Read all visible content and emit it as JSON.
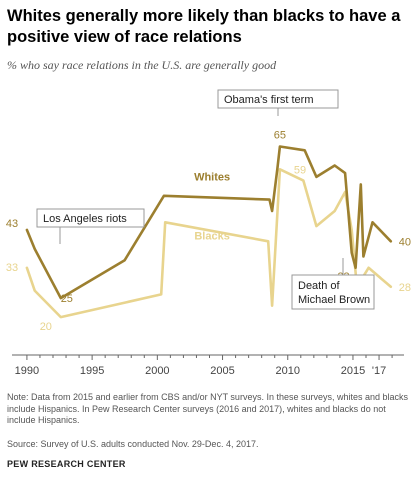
{
  "title": "Whites generally more likely than blacks to have a positive view of race relations",
  "subtitle": "% who say race relations in the U.S. are generally good",
  "note": "Note: Data from 2015 and earlier from CBS and/or NYT surveys. In these surveys, whites and blacks include Hispanics. In Pew Research Center surveys (2016 and 2017), whites and blacks do not include Hispanics.",
  "source": "Source: Survey of U.S. adults conducted Nov. 29-Dec. 4, 2017.",
  "brand": "PEW RESEARCH CENTER",
  "colors": {
    "whites": "#9c7f2f",
    "blacks": "#e8d48e",
    "axis": "#666666",
    "annotation_box": "#999999"
  },
  "chart_data": {
    "type": "line",
    "title": "Whites generally more likely than blacks to have a positive view of race relations",
    "subtitle": "% who say race relations in the U.S. are generally good",
    "xlabel": "",
    "ylabel": "",
    "x_ticks": [
      "1990",
      "1995",
      "2000",
      "2005",
      "2010",
      "2015",
      "'17"
    ],
    "x_tick_values": [
      1990,
      1995,
      2000,
      2005,
      2010,
      2015,
      2017
    ],
    "xlim": [
      1989.7,
      2018.3
    ],
    "ylim": [
      10,
      72
    ],
    "grid": false,
    "series": [
      {
        "name": "Whites",
        "color": "#9c7f2f",
        "points": [
          [
            1990.0,
            43
          ],
          [
            1990.6,
            38
          ],
          [
            1992.6,
            25
          ],
          [
            1997.5,
            35
          ],
          [
            2000.5,
            52
          ],
          [
            2008.6,
            51
          ],
          [
            2008.8,
            48
          ],
          [
            2009.2,
            59
          ],
          [
            2009.4,
            65
          ],
          [
            2011.3,
            64
          ],
          [
            2012.2,
            57
          ],
          [
            2013.6,
            60
          ],
          [
            2014.4,
            58
          ],
          [
            2014.9,
            37
          ],
          [
            2015.2,
            33
          ],
          [
            2015.6,
            55
          ],
          [
            2015.8,
            36
          ],
          [
            2016.5,
            45
          ],
          [
            2017.9,
            40
          ]
        ],
        "labels": [
          {
            "x": 1990.0,
            "y": 43,
            "text": "43"
          },
          {
            "x": 1992.6,
            "y": 25,
            "text": "25"
          },
          {
            "x": 2009.4,
            "y": 65,
            "text": "65"
          },
          {
            "x": 2015.2,
            "y": 33,
            "text": "33"
          },
          {
            "x": 2017.9,
            "y": 40,
            "text": "40"
          }
        ]
      },
      {
        "name": "Blacks",
        "color": "#e8d48e",
        "points": [
          [
            1990.0,
            33
          ],
          [
            1990.6,
            27
          ],
          [
            1992.6,
            20
          ],
          [
            2000.3,
            26
          ],
          [
            2000.6,
            45
          ],
          [
            2008.5,
            40
          ],
          [
            2008.8,
            23
          ],
          [
            2009.4,
            59
          ],
          [
            2011.2,
            56
          ],
          [
            2012.2,
            44
          ],
          [
            2013.6,
            48
          ],
          [
            2014.4,
            53
          ],
          [
            2014.9,
            43
          ],
          [
            2015.3,
            28
          ],
          [
            2016.2,
            33
          ],
          [
            2017.9,
            28
          ]
        ],
        "labels": [
          {
            "x": 1992.6,
            "y": 20,
            "text": "20"
          },
          {
            "x": 2009.4,
            "y": 59,
            "text": "59"
          },
          {
            "x": 2015.3,
            "y": 28,
            "text": "28"
          },
          {
            "x": 2017.9,
            "y": 28,
            "text": "28"
          }
        ]
      }
    ],
    "annotations": [
      {
        "text": "Obama's first term",
        "x": 2009.4
      },
      {
        "text": "Los Angeles riots",
        "x": 1992.6
      },
      {
        "text": "Death of Michael Brown",
        "x": 2014.4
      }
    ]
  }
}
